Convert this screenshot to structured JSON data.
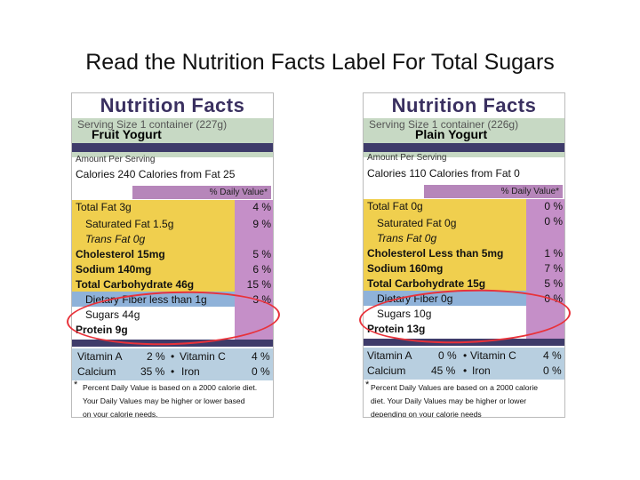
{
  "slide": {
    "title": "Read the Nutrition Facts Label For Total Sugars"
  },
  "labels": {
    "left": {
      "header": "Nutrition Facts",
      "serving": "Serving Size 1 container (227g)",
      "product": "Fruit Yogurt",
      "amount_per_serving": "Amount Per Serving",
      "calories": "Calories 240  Calories from Fat 25",
      "dv_header": "% Daily Value*",
      "total_fat": "Total Fat 3g",
      "total_fat_pct": "4 %",
      "sat_fat": "Saturated Fat  1.5g",
      "sat_fat_pct": "9 %",
      "trans_fat": "Trans Fat  0g",
      "cholesterol": "Cholesterol 15mg",
      "cholesterol_pct": "5 %",
      "sodium": "Sodium 140mg",
      "sodium_pct": "6 %",
      "total_carb": "Total Carbohydrate 46g",
      "total_carb_pct": "15 %",
      "fiber": "Dietary Fiber  less than 1g",
      "fiber_pct": "3 %",
      "sugars": "Sugars 44g",
      "protein": "Protein 9g",
      "vitamin_a": "Vitamin A",
      "vitamin_a_pct": "2 %",
      "vitamin_c": "Vitamin C",
      "vitamin_c_pct": "4 %",
      "calcium": "Calcium",
      "calcium_pct": "35 %",
      "iron": "Iron",
      "iron_pct": "0 %",
      "bullet": "•",
      "footnote_star": "*",
      "footnote_1": "Percent Daily Value is based on a 2000 calorie diet.",
      "footnote_2": "Your Daily Values may be higher or lower based",
      "footnote_3": "on your calorie needs."
    },
    "right": {
      "header": "Nutrition Facts",
      "serving": "Serving Size 1 container (226g)",
      "product": "Plain Yogurt",
      "amount_per_serving": "Amount Per Serving",
      "calories": "Calories 110  Calories from Fat  0",
      "dv_header": "% Daily Value*",
      "total_fat": "Total Fat 0g",
      "total_fat_pct": "0 %",
      "sat_fat": "Saturated Fat  0g",
      "sat_fat_pct": "0 %",
      "trans_fat": "Trans Fat  0g",
      "cholesterol": "Cholesterol Less than 5mg",
      "cholesterol_pct": "1 %",
      "sodium": "Sodium 160mg",
      "sodium_pct": "7 %",
      "total_carb": "Total Carbohydrate  15g",
      "total_carb_pct": "5 %",
      "fiber": "Dietary Fiber 0g",
      "fiber_pct": "0 %",
      "sugars": "Sugars 10g",
      "protein": "Protein 13g",
      "vitamin_a": "Vitamin A",
      "vitamin_a_pct": "0 %",
      "vitamin_c": "Vitamin C",
      "vitamin_c_pct": "4 %",
      "calcium": "Calcium",
      "calcium_pct": "45 %",
      "iron": "Iron",
      "iron_pct": "0 %",
      "bullet": "•",
      "footnote_star": "*",
      "footnote_1": "Percent Daily Values are based on a 2000 calorie",
      "footnote_2": "diet. Your Daily Values may be higher or lower",
      "footnote_3": "depending on your calorie needs"
    }
  },
  "colors": {
    "serving_bg": "#c7d9c4",
    "nutrient_bg": "#f0cf4e",
    "fiber_bg": "#8fb2d9",
    "percent_col": "#c58fc8",
    "header_text": "#3a3060",
    "highlight_circle": "#e8323a"
  }
}
